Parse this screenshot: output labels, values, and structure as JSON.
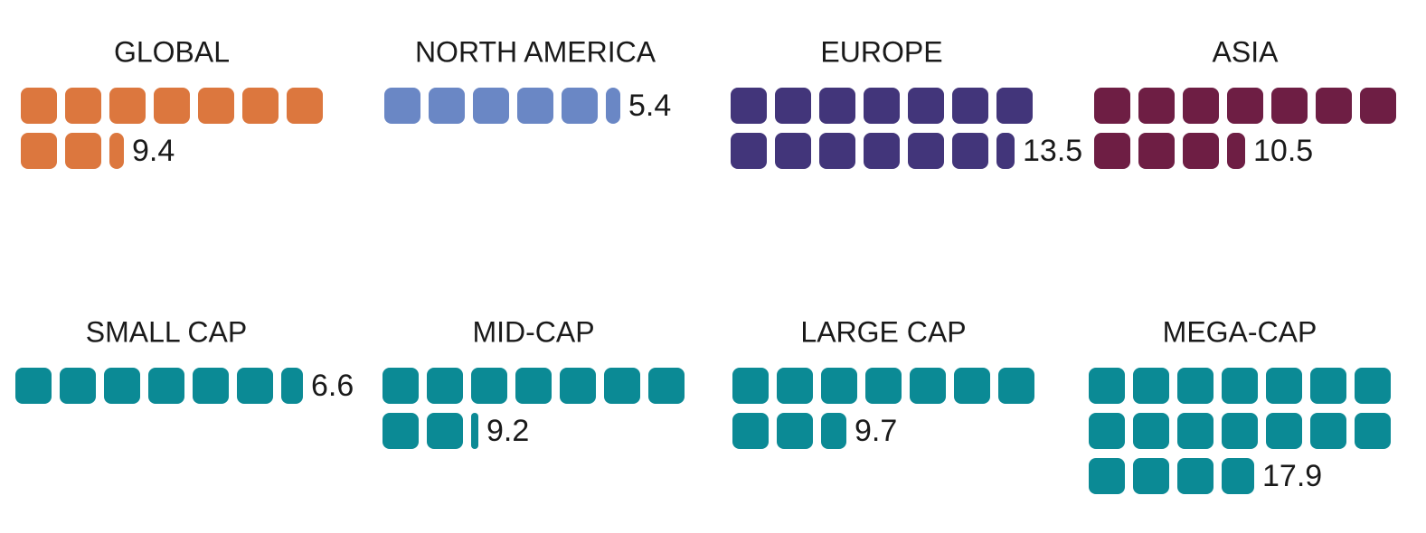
{
  "chart_data": [
    {
      "type": "waffle",
      "title": "GLOBAL",
      "value": 9.4,
      "color": "#dc773e"
    },
    {
      "type": "waffle",
      "title": "NORTH AMERICA",
      "value": 5.4,
      "color": "#6a87c5"
    },
    {
      "type": "waffle",
      "title": "EUROPE",
      "value": 13.5,
      "color": "#42357a"
    },
    {
      "type": "waffle",
      "title": "ASIA",
      "value": 10.5,
      "color": "#6e1e44"
    },
    {
      "type": "waffle",
      "title": "SMALL CAP",
      "value": 6.6,
      "color": "#0b8a95"
    },
    {
      "type": "waffle",
      "title": "MID-CAP",
      "value": 9.2,
      "color": "#0b8a95"
    },
    {
      "type": "waffle",
      "title": "LARGE CAP",
      "value": 9.7,
      "color": "#0b8a95"
    },
    {
      "type": "waffle",
      "title": "MEGA-CAP",
      "value": 17.9,
      "color": "#0b8a95"
    }
  ]
}
